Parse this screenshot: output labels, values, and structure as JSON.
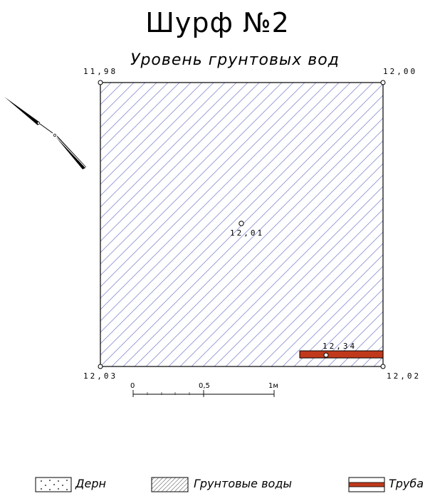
{
  "header": {
    "title": "Шурф №2",
    "subtitle": "Уровень грунтовых вод"
  },
  "points": {
    "top_left": "11,98",
    "top_right": "12,00",
    "bottom_left": "12,03",
    "bottom_right": "12,02",
    "center": "12,01",
    "pipe": "12,34"
  },
  "scale": {
    "start": "0",
    "mid": "0,5",
    "end": "1м"
  },
  "legend": {
    "items": [
      {
        "label": "Дерн",
        "pattern": "dots"
      },
      {
        "label": "Грунтовые воды",
        "pattern": "hatch"
      },
      {
        "label": "Труба",
        "pattern": "pipe"
      }
    ]
  },
  "colors": {
    "hatch": "#8a8fd0",
    "pipe": "#c0391b",
    "outline": "#000000"
  },
  "icons": {
    "north_arrow": "north-arrow-icon"
  }
}
